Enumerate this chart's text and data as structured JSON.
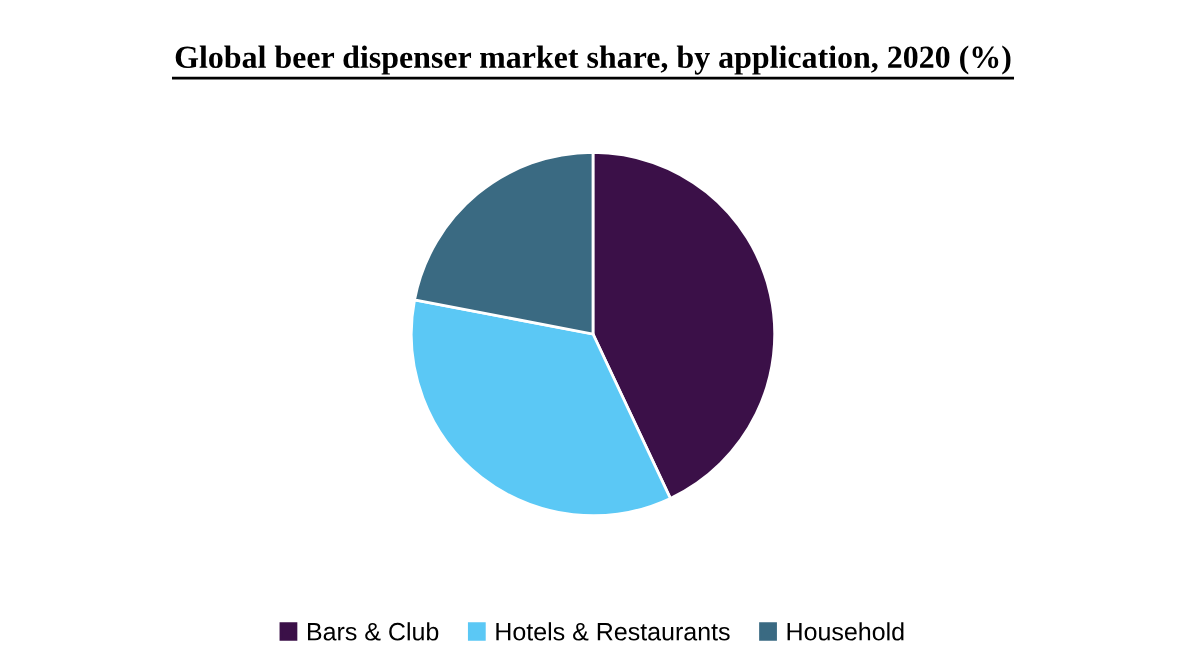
{
  "chart_data": {
    "type": "pie",
    "title": "Global beer dispenser market share, by application, 2020 (%)",
    "categories": [
      "Bars & Club",
      "Hotels & Restaurants",
      "Household"
    ],
    "values": [
      43,
      35,
      22
    ],
    "colors": [
      "#3b1048",
      "#5bc8f5",
      "#3a6a82"
    ],
    "legend": "bottom"
  }
}
